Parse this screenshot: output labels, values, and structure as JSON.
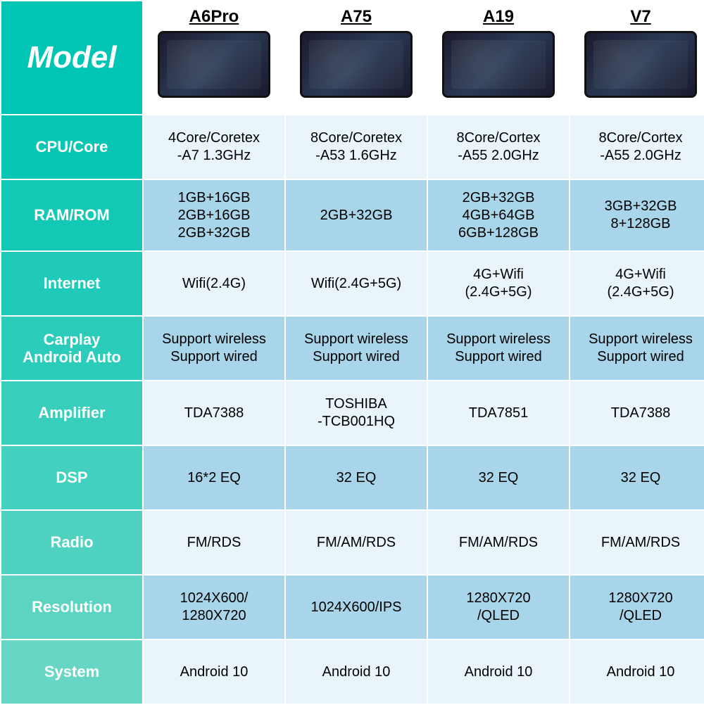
{
  "colors": {
    "label_gradient": [
      "#00c4b4",
      "#08c6b4",
      "#14c8b6",
      "#20cab8",
      "#2cccba",
      "#38cebc",
      "#44d0be",
      "#50d2c0",
      "#5cd4c2",
      "#68d6c4",
      "#74d8c6"
    ],
    "data_odd": "#eaf5fb",
    "data_even": "#a8d5ea",
    "header_bg": "#ffffff"
  },
  "row_labels": [
    "Model",
    "CPU/Core",
    "RAM/ROM",
    "Internet",
    "Carplay\nAndroid Auto",
    "Amplifier",
    "DSP",
    "Radio",
    "Resolution",
    "System"
  ],
  "models": [
    "A6Pro",
    "A75",
    "A19",
    "V7"
  ],
  "rows": [
    {
      "key": "cpu",
      "cells": [
        "4Core/Coretex\n-A7 1.3GHz",
        "8Core/Coretex\n-A53 1.6GHz",
        "8Core/Cortex\n-A55 2.0GHz",
        "8Core/Cortex\n-A55 2.0GHz"
      ]
    },
    {
      "key": "ram",
      "cells": [
        "1GB+16GB\n2GB+16GB\n2GB+32GB",
        "2GB+32GB",
        "2GB+32GB\n4GB+64GB\n6GB+128GB",
        "3GB+32GB\n8+128GB"
      ]
    },
    {
      "key": "internet",
      "cells": [
        "Wifi(2.4G)",
        "Wifi(2.4G+5G)",
        "4G+Wifi\n(2.4G+5G)",
        "4G+Wifi\n(2.4G+5G)"
      ]
    },
    {
      "key": "carplay",
      "cells": [
        "Support wireless\nSupport wired",
        "Support wireless\nSupport wired",
        "Support wireless\nSupport wired",
        "Support wireless\nSupport wired"
      ]
    },
    {
      "key": "amp",
      "cells": [
        "TDA7388",
        "TOSHIBA\n-TCB001HQ",
        "TDA7851",
        "TDA7388"
      ]
    },
    {
      "key": "dsp",
      "cells": [
        "16*2 EQ",
        "32 EQ",
        "32 EQ",
        "32 EQ"
      ]
    },
    {
      "key": "radio",
      "cells": [
        "FM/RDS",
        "FM/AM/RDS",
        "FM/AM/RDS",
        "FM/AM/RDS"
      ]
    },
    {
      "key": "res",
      "cells": [
        "1024X600/\n1280X720",
        "1024X600/IPS",
        "1280X720\n/QLED",
        "1280X720\n/QLED"
      ]
    },
    {
      "key": "system",
      "cells": [
        "Android 10",
        "Android 10",
        "Android 10",
        "Android 10"
      ]
    }
  ]
}
